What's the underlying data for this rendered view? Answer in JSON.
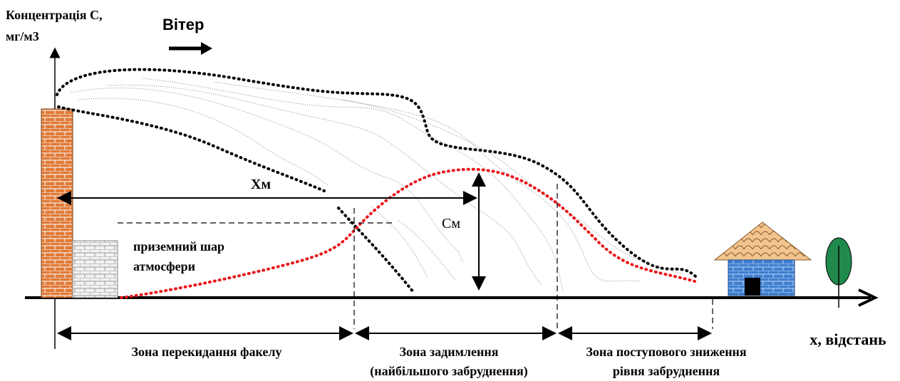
{
  "axes": {
    "y_label": [
      "Концентрація С,",
      "мг/м3"
    ],
    "x_label": "х, відстань"
  },
  "wind": "Вітер",
  "markers": {
    "xm": "Хм",
    "cm": "См"
  },
  "layer_label": [
    "приземний шар",
    "атмосфери"
  ],
  "zones": [
    {
      "lines": [
        "Зона перекидання факелу"
      ]
    },
    {
      "lines": [
        "Зона задимлення",
        "(найбільшого забруднення)"
      ]
    },
    {
      "lines": [
        "Зона поступового зниження",
        "рівня забруднення"
      ]
    }
  ]
}
